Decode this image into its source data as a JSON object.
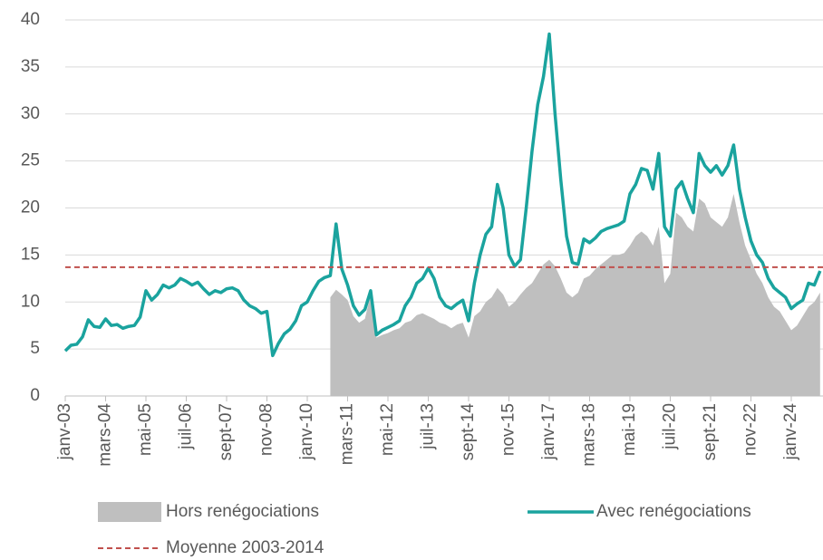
{
  "chart_data": {
    "type": "line",
    "categories": [
      "janv-03",
      null,
      null,
      null,
      null,
      null,
      null,
      "mars-04",
      null,
      null,
      null,
      null,
      null,
      null,
      "mai-05",
      null,
      null,
      null,
      null,
      null,
      null,
      "juil-06",
      null,
      null,
      null,
      null,
      null,
      null,
      "sept-07",
      null,
      null,
      null,
      null,
      null,
      null,
      "nov-08",
      null,
      null,
      null,
      null,
      null,
      null,
      "janv-10",
      null,
      null,
      null,
      null,
      null,
      null,
      "mars-11",
      null,
      null,
      null,
      null,
      null,
      null,
      "mai-12",
      null,
      null,
      null,
      null,
      null,
      null,
      "juil-13",
      null,
      null,
      null,
      null,
      null,
      null,
      "sept-14",
      null,
      null,
      null,
      null,
      null,
      null,
      "nov-15",
      null,
      null,
      null,
      null,
      null,
      null,
      "janv-17",
      null,
      null,
      null,
      null,
      null,
      null,
      "mars-18",
      null,
      null,
      null,
      null,
      null,
      null,
      "mai-19",
      null,
      null,
      null,
      null,
      null,
      null,
      "juil-20",
      null,
      null,
      null,
      null,
      null,
      null,
      "sept-21",
      null,
      null,
      null,
      null,
      null,
      null,
      "nov-22",
      null,
      null,
      null,
      null,
      null,
      null,
      "janv-24",
      null,
      null,
      null,
      null,
      null
    ],
    "series": [
      {
        "name": "Hors renégociations",
        "kind": "area",
        "color": "#bfbfbf",
        "values": [
          null,
          null,
          null,
          null,
          null,
          null,
          null,
          null,
          null,
          null,
          null,
          null,
          null,
          null,
          null,
          null,
          null,
          null,
          null,
          null,
          null,
          null,
          null,
          null,
          null,
          null,
          null,
          null,
          null,
          null,
          null,
          null,
          null,
          null,
          null,
          null,
          null,
          null,
          null,
          null,
          null,
          null,
          null,
          null,
          null,
          null,
          10.5,
          11.3,
          10.8,
          10.2,
          8.5,
          7.8,
          8.2,
          10.8,
          6.2,
          6.5,
          6.7,
          7.0,
          7.2,
          7.8,
          8.0,
          8.6,
          8.8,
          8.5,
          8.2,
          7.8,
          7.6,
          7.2,
          7.6,
          7.8,
          6.2,
          8.5,
          9.0,
          10.0,
          10.5,
          11.5,
          10.8,
          9.5,
          10.0,
          10.8,
          11.5,
          12.0,
          13.0,
          14.0,
          14.5,
          13.8,
          12.5,
          11.0,
          10.5,
          11.0,
          12.5,
          12.8,
          13.5,
          14.0,
          14.5,
          15.0,
          15.0,
          15.2,
          16.0,
          17.0,
          17.5,
          17.0,
          16.0,
          18.0,
          12.0,
          13.0,
          19.5,
          19.0,
          18.0,
          17.5,
          21.0,
          20.5,
          19.0,
          18.5,
          18.0,
          19.0,
          21.5,
          18.5,
          16.0,
          14.5,
          13.0,
          12.0,
          10.5,
          9.5,
          9.0,
          8.0,
          7.0,
          7.5,
          8.5,
          9.5,
          10.0,
          11.0
        ]
      },
      {
        "name": "Avec renégociations",
        "kind": "line",
        "color": "#1aa39e",
        "values": [
          4.8,
          5.4,
          5.5,
          6.3,
          8.1,
          7.4,
          7.3,
          8.2,
          7.5,
          7.6,
          7.2,
          7.4,
          7.5,
          8.4,
          11.2,
          10.2,
          10.8,
          11.8,
          11.5,
          11.8,
          12.5,
          12.2,
          11.8,
          12.1,
          11.4,
          10.8,
          11.2,
          11.0,
          11.4,
          11.5,
          11.2,
          10.2,
          9.6,
          9.3,
          8.8,
          9.0,
          4.3,
          5.6,
          6.6,
          7.1,
          8.0,
          9.6,
          10.0,
          11.2,
          12.2,
          12.6,
          12.8,
          18.3,
          13.5,
          11.8,
          9.6,
          8.6,
          9.2,
          11.2,
          6.5,
          7.0,
          7.3,
          7.6,
          8.0,
          9.6,
          10.5,
          12.0,
          12.5,
          13.6,
          12.5,
          10.5,
          9.6,
          9.3,
          9.8,
          10.2,
          8.0,
          12.0,
          15.0,
          17.2,
          18.0,
          22.5,
          20.0,
          15.0,
          13.8,
          14.5,
          20.0,
          26.0,
          31.0,
          34.0,
          38.5,
          30.0,
          23.0,
          17.0,
          14.2,
          14.0,
          16.7,
          16.3,
          16.8,
          17.5,
          17.8,
          18.0,
          18.2,
          18.6,
          21.5,
          22.5,
          24.2,
          24.0,
          22.0,
          25.8,
          18.0,
          17.0,
          22.0,
          22.8,
          21.0,
          19.5,
          25.8,
          24.5,
          23.8,
          24.5,
          23.5,
          24.5,
          26.7,
          22.0,
          19.0,
          16.5,
          15.0,
          14.2,
          12.5,
          11.5,
          11.0,
          10.5,
          9.3,
          9.8,
          10.2,
          12.0,
          11.8,
          13.3
        ]
      }
    ],
    "reference_lines": [
      {
        "name": "Moyenne 2003-2014",
        "value": 13.7,
        "color": "#c0504d",
        "dashed": true
      }
    ],
    "ylim": [
      0,
      40
    ],
    "yticks": [
      0,
      5,
      10,
      15,
      20,
      25,
      30,
      35,
      40
    ],
    "grid": true
  }
}
